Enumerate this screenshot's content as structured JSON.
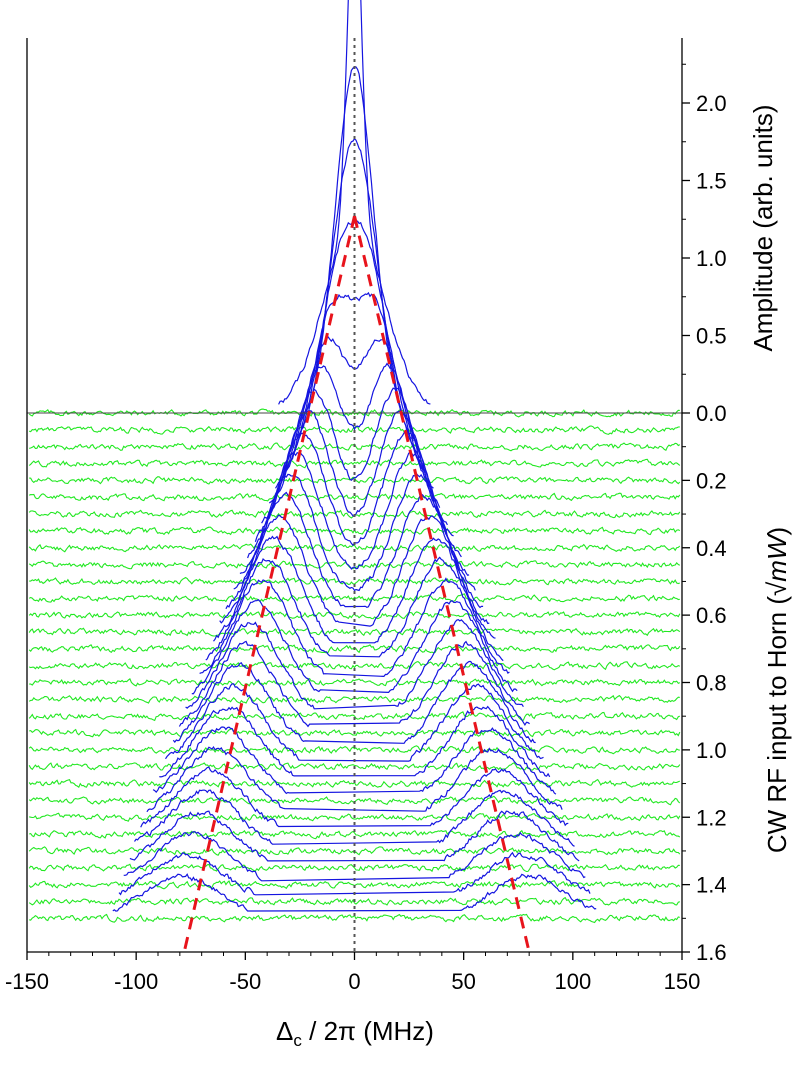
{
  "chart_data": {
    "type": "line",
    "x_axis": {
      "label_main": "Δ",
      "label_sub": "c",
      "label_rest": " / 2π (MHz)",
      "range": [
        -150,
        150
      ],
      "ticks": [
        -150,
        -100,
        -50,
        0,
        50,
        100,
        150
      ],
      "tick_labels": [
        "-150",
        "-100",
        "-50",
        "0",
        "50",
        "100",
        "150"
      ]
    },
    "right_axis_upper": {
      "label": "Amplitude (arb. units)",
      "range": [
        0,
        2.3
      ],
      "ticks": [
        0.5,
        1.0,
        1.5,
        2.0
      ],
      "tick_labels": [
        "0.5",
        "1.0",
        "1.5",
        "2.0"
      ]
    },
    "right_axis_lower": {
      "label_prefix": "CW RF input to Horn (",
      "label_math": "√mW",
      "label_suffix": ")",
      "range": [
        0,
        1.6
      ],
      "ticks": [
        0.0,
        0.2,
        0.4,
        0.6,
        0.8,
        1.0,
        1.2,
        1.4,
        1.6
      ],
      "tick_labels": [
        "0.0",
        "0.2",
        "0.4",
        "0.6",
        "0.8",
        "1.0",
        "1.2",
        "1.4",
        "1.6"
      ]
    },
    "offsets": [
      0.0,
      0.05,
      0.1,
      0.15,
      0.2,
      0.25,
      0.3,
      0.35,
      0.4,
      0.45,
      0.5,
      0.55,
      0.6,
      0.65,
      0.7,
      0.75,
      0.8,
      0.85,
      0.9,
      0.95,
      1.0,
      1.05,
      1.1,
      1.15,
      1.2,
      1.25,
      1.3,
      1.35,
      1.4,
      1.45,
      1.5
    ],
    "peak_model": {
      "splitting_slope_MHz_per_unit": 53,
      "zero_offset_peak_amplitude": 2.25,
      "peak_width_MHz": 8,
      "noise_amplitude": 0.03
    },
    "fit_lines": {
      "style": "dashed",
      "color": "#e8141c",
      "left": [
        [
          0,
          1.27
        ],
        [
          -78,
          -1.6
        ]
      ],
      "right": [
        [
          0,
          1.27
        ],
        [
          80,
          -1.6
        ]
      ]
    },
    "reference_line": {
      "x": 0,
      "style": "dotted",
      "color": "#555555"
    },
    "zero_line": {
      "y": 0
    },
    "colors": {
      "signal": "#1515e0",
      "baseline": "#22e822",
      "axes": "#000000"
    }
  }
}
